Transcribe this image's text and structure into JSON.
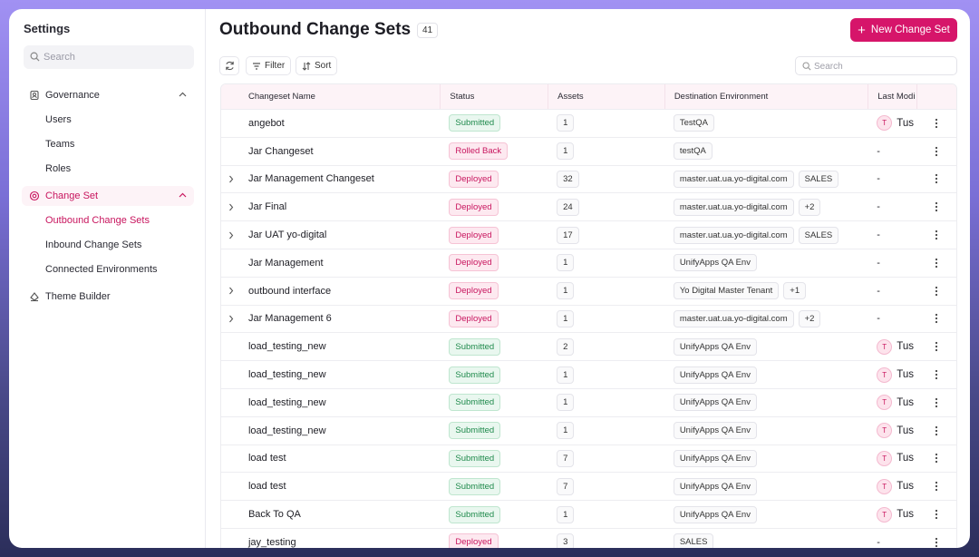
{
  "sidebar": {
    "title": "Settings",
    "search_placeholder": "Search",
    "nav": [
      {
        "label": "Governance",
        "icon": "governance",
        "items": [
          "Users",
          "Teams",
          "Roles"
        ]
      },
      {
        "label": "Change Set",
        "icon": "changeset",
        "active": true,
        "items": [
          "Outbound Change Sets",
          "Inbound Change Sets",
          "Connected Environments"
        ],
        "active_item": 0
      },
      {
        "label": "Theme Builder",
        "icon": "theme",
        "items": []
      }
    ]
  },
  "header": {
    "title": "Outbound Change Sets",
    "count": "41",
    "button": "New Change Set"
  },
  "toolbar": {
    "filter": "Filter",
    "sort": "Sort",
    "search_placeholder": "Search"
  },
  "table": {
    "columns": [
      "Changeset Name",
      "Status",
      "Assets",
      "Destination Environment",
      "Last Modi"
    ],
    "rows": [
      {
        "name": "angebot",
        "status": "Submitted",
        "assets": "1",
        "destinations": [
          "TestQA"
        ],
        "modified": {
          "initial": "T",
          "name": "Tus"
        },
        "expandable": false
      },
      {
        "name": "Jar Changeset",
        "status": "Rolled Back",
        "assets": "1",
        "destinations": [
          "testQA"
        ],
        "modified": "-",
        "expandable": false
      },
      {
        "name": "Jar Management Changeset",
        "status": "Deployed",
        "assets": "32",
        "destinations": [
          "master.uat.ua.yo-digital.com",
          "SALES"
        ],
        "modified": "-",
        "expandable": true
      },
      {
        "name": "Jar Final",
        "status": "Deployed",
        "assets": "24",
        "destinations": [
          "master.uat.ua.yo-digital.com",
          "+2"
        ],
        "modified": "-",
        "expandable": true
      },
      {
        "name": "Jar UAT yo-digital",
        "status": "Deployed",
        "assets": "17",
        "destinations": [
          "master.uat.ua.yo-digital.com",
          "SALES"
        ],
        "modified": "-",
        "expandable": true
      },
      {
        "name": "Jar Management",
        "status": "Deployed",
        "assets": "1",
        "destinations": [
          "UnifyApps QA Env"
        ],
        "modified": "-",
        "expandable": false
      },
      {
        "name": "outbound interface",
        "status": "Deployed",
        "assets": "1",
        "destinations": [
          "Yo Digital Master Tenant",
          "+1"
        ],
        "modified": "-",
        "expandable": true
      },
      {
        "name": "Jar Management 6",
        "status": "Deployed",
        "assets": "1",
        "destinations": [
          "master.uat.ua.yo-digital.com",
          "+2"
        ],
        "modified": "-",
        "expandable": true
      },
      {
        "name": "load_testing_new",
        "status": "Submitted",
        "assets": "2",
        "destinations": [
          "UnifyApps QA Env"
        ],
        "modified": {
          "initial": "T",
          "name": "Tus"
        },
        "expandable": false
      },
      {
        "name": "load_testing_new",
        "status": "Submitted",
        "assets": "1",
        "destinations": [
          "UnifyApps QA Env"
        ],
        "modified": {
          "initial": "T",
          "name": "Tus"
        },
        "expandable": false
      },
      {
        "name": "load_testing_new",
        "status": "Submitted",
        "assets": "1",
        "destinations": [
          "UnifyApps QA Env"
        ],
        "modified": {
          "initial": "T",
          "name": "Tus"
        },
        "expandable": false
      },
      {
        "name": "load_testing_new",
        "status": "Submitted",
        "assets": "1",
        "destinations": [
          "UnifyApps QA Env"
        ],
        "modified": {
          "initial": "T",
          "name": "Tus"
        },
        "expandable": false
      },
      {
        "name": "load test",
        "status": "Submitted",
        "assets": "7",
        "destinations": [
          "UnifyApps QA Env"
        ],
        "modified": {
          "initial": "T",
          "name": "Tus"
        },
        "expandable": false
      },
      {
        "name": "load test",
        "status": "Submitted",
        "assets": "7",
        "destinations": [
          "UnifyApps QA Env"
        ],
        "modified": {
          "initial": "T",
          "name": "Tus"
        },
        "expandable": false
      },
      {
        "name": "Back To QA",
        "status": "Submitted",
        "assets": "1",
        "destinations": [
          "UnifyApps QA Env"
        ],
        "modified": {
          "initial": "T",
          "name": "Tus"
        },
        "expandable": false
      },
      {
        "name": "jay_testing",
        "status": "Deployed",
        "assets": "3",
        "destinations": [
          "SALES"
        ],
        "modified": "-",
        "expandable": false
      }
    ]
  }
}
